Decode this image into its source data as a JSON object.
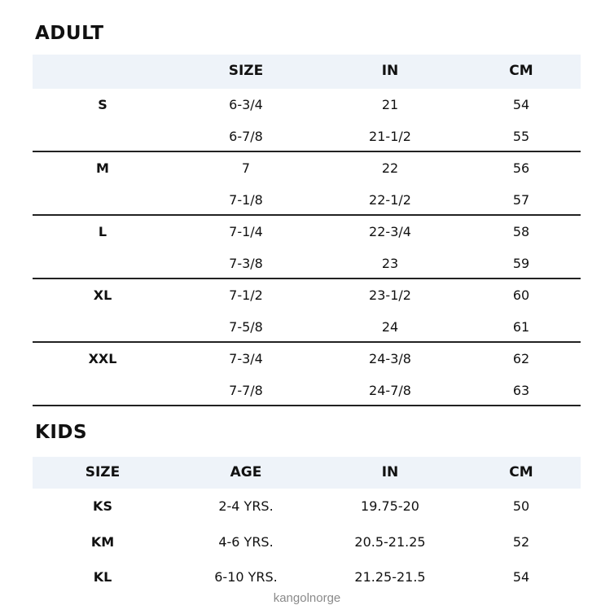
{
  "adult": {
    "title": "ADULT",
    "headers": [
      "",
      "SIZE",
      "IN",
      "CM"
    ],
    "groups": [
      {
        "label": "S",
        "rows": [
          [
            "6-3/4",
            "21",
            "54"
          ],
          [
            "6-7/8",
            "21-1/2",
            "55"
          ]
        ]
      },
      {
        "label": "M",
        "rows": [
          [
            "7",
            "22",
            "56"
          ],
          [
            "7-1/8",
            "22-1/2",
            "57"
          ]
        ]
      },
      {
        "label": "L",
        "rows": [
          [
            "7-1/4",
            "22-3/4",
            "58"
          ],
          [
            "7-3/8",
            "23",
            "59"
          ]
        ]
      },
      {
        "label": "XL",
        "rows": [
          [
            "7-1/2",
            "23-1/2",
            "60"
          ],
          [
            "7-5/8",
            "24",
            "61"
          ]
        ]
      },
      {
        "label": "XXL",
        "rows": [
          [
            "7-3/4",
            "24-3/8",
            "62"
          ],
          [
            "7-7/8",
            "24-7/8",
            "63"
          ]
        ]
      }
    ]
  },
  "kids": {
    "title": "KIDS",
    "headers": [
      "SIZE",
      "AGE",
      "IN",
      "CM"
    ],
    "rows": [
      [
        "KS",
        "2-4 YRS.",
        "19.75-20",
        "50"
      ],
      [
        "KM",
        "4-6 YRS.",
        "20.5-21.25",
        "52"
      ],
      [
        "KL",
        "6-10 YRS.",
        "21.25-21.5",
        "54"
      ]
    ]
  },
  "watermark": "kangolnorge",
  "colors": {
    "header_bg": "#eef3f9",
    "divider": "#222222"
  }
}
